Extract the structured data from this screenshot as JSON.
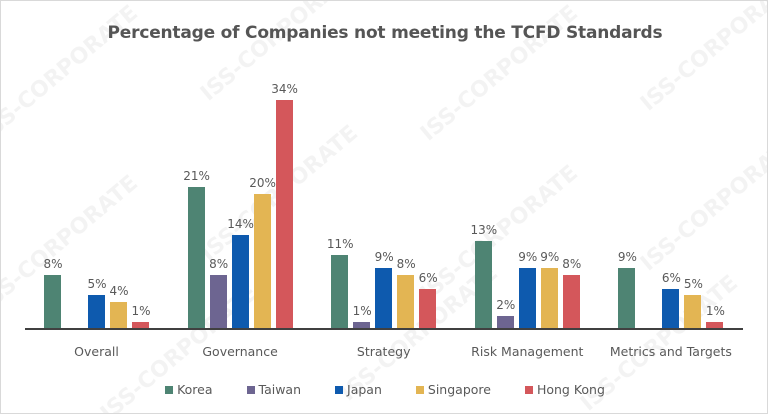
{
  "chart_data": {
    "type": "bar",
    "title": "Percentage of Companies not meeting the TCFD Standards",
    "xlabel": "",
    "ylabel": "",
    "ylim": [
      0,
      35
    ],
    "grid": false,
    "legend_position": "bottom",
    "categories": [
      "Overall",
      "Governance",
      "Strategy",
      "Risk Management",
      "Metrics and Targets"
    ],
    "series": [
      {
        "name": "Korea",
        "color": "#4e8473",
        "values": [
          8,
          21,
          11,
          13,
          9
        ],
        "labels": [
          "8%",
          "21%",
          "11%",
          "13%",
          "9%"
        ]
      },
      {
        "name": "Taiwan",
        "color": "#6d6591",
        "values": [
          0,
          8,
          1,
          2,
          0
        ],
        "labels": [
          "",
          "8%",
          "1%",
          "2%",
          ""
        ]
      },
      {
        "name": "Japan",
        "color": "#0e5aae",
        "values": [
          5,
          14,
          9,
          9,
          6
        ],
        "labels": [
          "5%",
          "14%",
          "9%",
          "9%",
          "6%"
        ]
      },
      {
        "name": "Singapore",
        "color": "#e3b553",
        "values": [
          4,
          20,
          8,
          9,
          5
        ],
        "labels": [
          "4%",
          "20%",
          "8%",
          "9%",
          "5%"
        ]
      },
      {
        "name": "Hong Kong",
        "color": "#d4575b",
        "values": [
          1,
          34,
          6,
          8,
          1
        ],
        "labels": [
          "1%",
          "34%",
          "6%",
          "8%",
          "1%"
        ]
      }
    ]
  },
  "watermark": "ISS-CORPORATE"
}
